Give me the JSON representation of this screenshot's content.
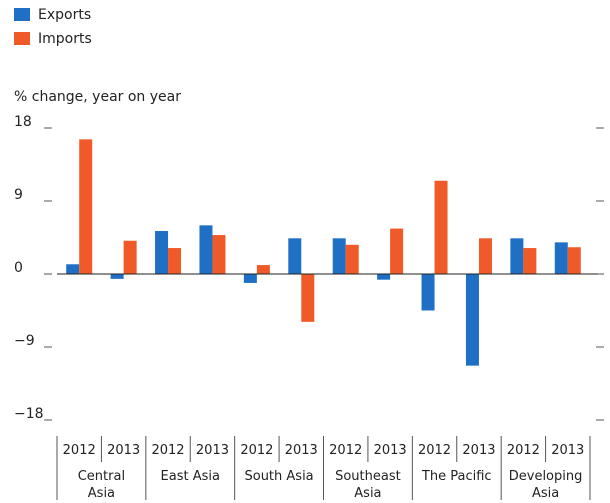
{
  "chart_data": {
    "type": "bar",
    "y_axis_label": "% change, year on year",
    "categories": [
      "2012",
      "2013",
      "2012",
      "2013",
      "2012",
      "2013",
      "2012",
      "2013",
      "2012",
      "2013",
      "2012",
      "2013"
    ],
    "groups": [
      "Central Asia",
      "East Asia",
      "South Asia",
      "Southeast Asia",
      "The Pacific",
      "Developing Asia"
    ],
    "series": [
      {
        "name": "Exports",
        "color": "#1f6fc5",
        "values": [
          1.2,
          -0.6,
          5.3,
          6.0,
          -1.1,
          4.4,
          4.4,
          -0.7,
          -4.5,
          -11.3,
          4.4,
          3.9
        ]
      },
      {
        "name": "Imports",
        "color": "#f05a28",
        "values": [
          16.6,
          4.1,
          3.2,
          4.8,
          1.1,
          -5.9,
          3.6,
          5.6,
          11.5,
          4.4,
          3.2,
          3.3
        ]
      }
    ],
    "ylim": [
      -18,
      18
    ],
    "yticks": [
      {
        "value": -18,
        "label": "−18"
      },
      {
        "value": -9,
        "label": "−9"
      },
      0,
      9,
      18
    ]
  }
}
